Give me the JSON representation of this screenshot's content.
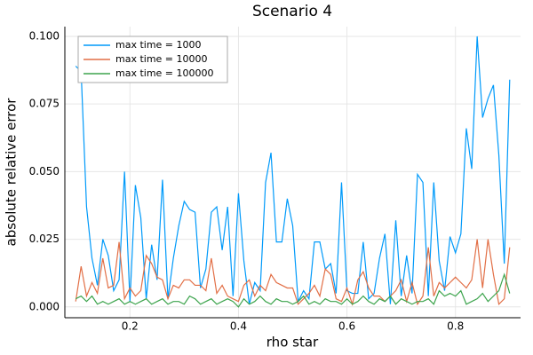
{
  "chart_data": {
    "type": "line",
    "title": "Scenario 4",
    "xlabel": "rho star",
    "ylabel": "absolute relative error",
    "x": [
      0.1,
      0.11,
      0.12,
      0.13,
      0.14,
      0.15,
      0.16,
      0.17,
      0.18,
      0.19,
      0.2,
      0.21,
      0.22,
      0.23,
      0.24,
      0.25,
      0.26,
      0.27,
      0.28,
      0.29,
      0.3,
      0.31,
      0.32,
      0.33,
      0.34,
      0.35,
      0.36,
      0.37,
      0.38,
      0.39,
      0.4,
      0.41,
      0.42,
      0.43,
      0.44,
      0.45,
      0.46,
      0.47,
      0.48,
      0.49,
      0.5,
      0.51,
      0.52,
      0.53,
      0.54,
      0.55,
      0.56,
      0.57,
      0.58,
      0.59,
      0.6,
      0.61,
      0.62,
      0.63,
      0.64,
      0.65,
      0.66,
      0.67,
      0.68,
      0.69,
      0.7,
      0.71,
      0.72,
      0.73,
      0.74,
      0.75,
      0.76,
      0.77,
      0.78,
      0.79,
      0.8,
      0.81,
      0.82,
      0.83,
      0.84,
      0.85,
      0.86,
      0.87,
      0.88,
      0.89,
      0.9
    ],
    "series": [
      {
        "name": "max time = 1000",
        "color": "#009afa",
        "values": [
          0.089,
          0.087,
          0.037,
          0.018,
          0.008,
          0.025,
          0.019,
          0.006,
          0.01,
          0.05,
          0.002,
          0.045,
          0.033,
          0.003,
          0.023,
          0.01,
          0.047,
          0.003,
          0.018,
          0.03,
          0.039,
          0.036,
          0.035,
          0.007,
          0.014,
          0.035,
          0.037,
          0.021,
          0.037,
          0.004,
          0.042,
          0.017,
          0.001,
          0.009,
          0.006,
          0.046,
          0.057,
          0.024,
          0.024,
          0.04,
          0.03,
          0.002,
          0.006,
          0.003,
          0.024,
          0.024,
          0.014,
          0.016,
          0.005,
          0.046,
          0.006,
          0.005,
          0.005,
          0.024,
          0.003,
          0.005,
          0.018,
          0.027,
          0.001,
          0.032,
          0.004,
          0.019,
          0.005,
          0.049,
          0.046,
          0.004,
          0.046,
          0.017,
          0.006,
          0.026,
          0.02,
          0.027,
          0.066,
          0.051,
          0.1,
          0.07,
          0.077,
          0.082,
          0.056,
          0.016,
          0.084
        ]
      },
      {
        "name": "max time = 10000",
        "color": "#e26f46",
        "values": [
          0.002,
          0.015,
          0.004,
          0.009,
          0.005,
          0.018,
          0.007,
          0.008,
          0.024,
          0.003,
          0.007,
          0.004,
          0.006,
          0.019,
          0.016,
          0.011,
          0.01,
          0.003,
          0.008,
          0.007,
          0.01,
          0.01,
          0.008,
          0.008,
          0.006,
          0.018,
          0.005,
          0.008,
          0.004,
          0.003,
          0.002,
          0.008,
          0.01,
          0.004,
          0.008,
          0.006,
          0.012,
          0.009,
          0.008,
          0.007,
          0.007,
          0.001,
          0.003,
          0.005,
          0.008,
          0.004,
          0.014,
          0.012,
          0.003,
          0.002,
          0.007,
          0.001,
          0.01,
          0.013,
          0.007,
          0.004,
          0.004,
          0.002,
          0.004,
          0.006,
          0.01,
          0.002,
          0.009,
          0.001,
          0.004,
          0.022,
          0.004,
          0.009,
          0.007,
          0.009,
          0.011,
          0.009,
          0.007,
          0.01,
          0.025,
          0.007,
          0.025,
          0.012,
          0.001,
          0.003,
          0.022
        ]
      },
      {
        "name": "max time = 100000",
        "color": "#3da44d",
        "values": [
          0.003,
          0.004,
          0.002,
          0.004,
          0.001,
          0.002,
          0.001,
          0.002,
          0.003,
          0.001,
          0.002,
          0.001,
          0.002,
          0.003,
          0.001,
          0.002,
          0.003,
          0.001,
          0.002,
          0.002,
          0.001,
          0.004,
          0.003,
          0.001,
          0.002,
          0.003,
          0.001,
          0.002,
          0.003,
          0.002,
          0.0,
          0.003,
          0.001,
          0.002,
          0.004,
          0.002,
          0.001,
          0.003,
          0.002,
          0.002,
          0.001,
          0.002,
          0.004,
          0.001,
          0.002,
          0.001,
          0.003,
          0.002,
          0.002,
          0.001,
          0.003,
          0.001,
          0.002,
          0.004,
          0.002,
          0.001,
          0.003,
          0.002,
          0.004,
          0.001,
          0.003,
          0.002,
          0.001,
          0.002,
          0.002,
          0.003,
          0.001,
          0.006,
          0.004,
          0.005,
          0.004,
          0.006,
          0.001,
          0.002,
          0.003,
          0.005,
          0.002,
          0.004,
          0.006,
          0.012,
          0.005
        ]
      }
    ],
    "xlim": [
      0.08,
      0.92
    ],
    "ylim": [
      -0.004,
      0.1036
    ],
    "xticks": [
      0.2,
      0.4,
      0.6,
      0.8
    ],
    "yticks": [
      {
        "value": 0,
        "label": "0.000"
      },
      {
        "value": 0.025,
        "label": "0.025"
      },
      {
        "value": 0.05,
        "label": "0.050"
      },
      {
        "value": 0.075,
        "label": "0.075"
      },
      {
        "value": 0.1,
        "label": "0.100"
      }
    ],
    "grid": true,
    "legend": "top-left"
  }
}
